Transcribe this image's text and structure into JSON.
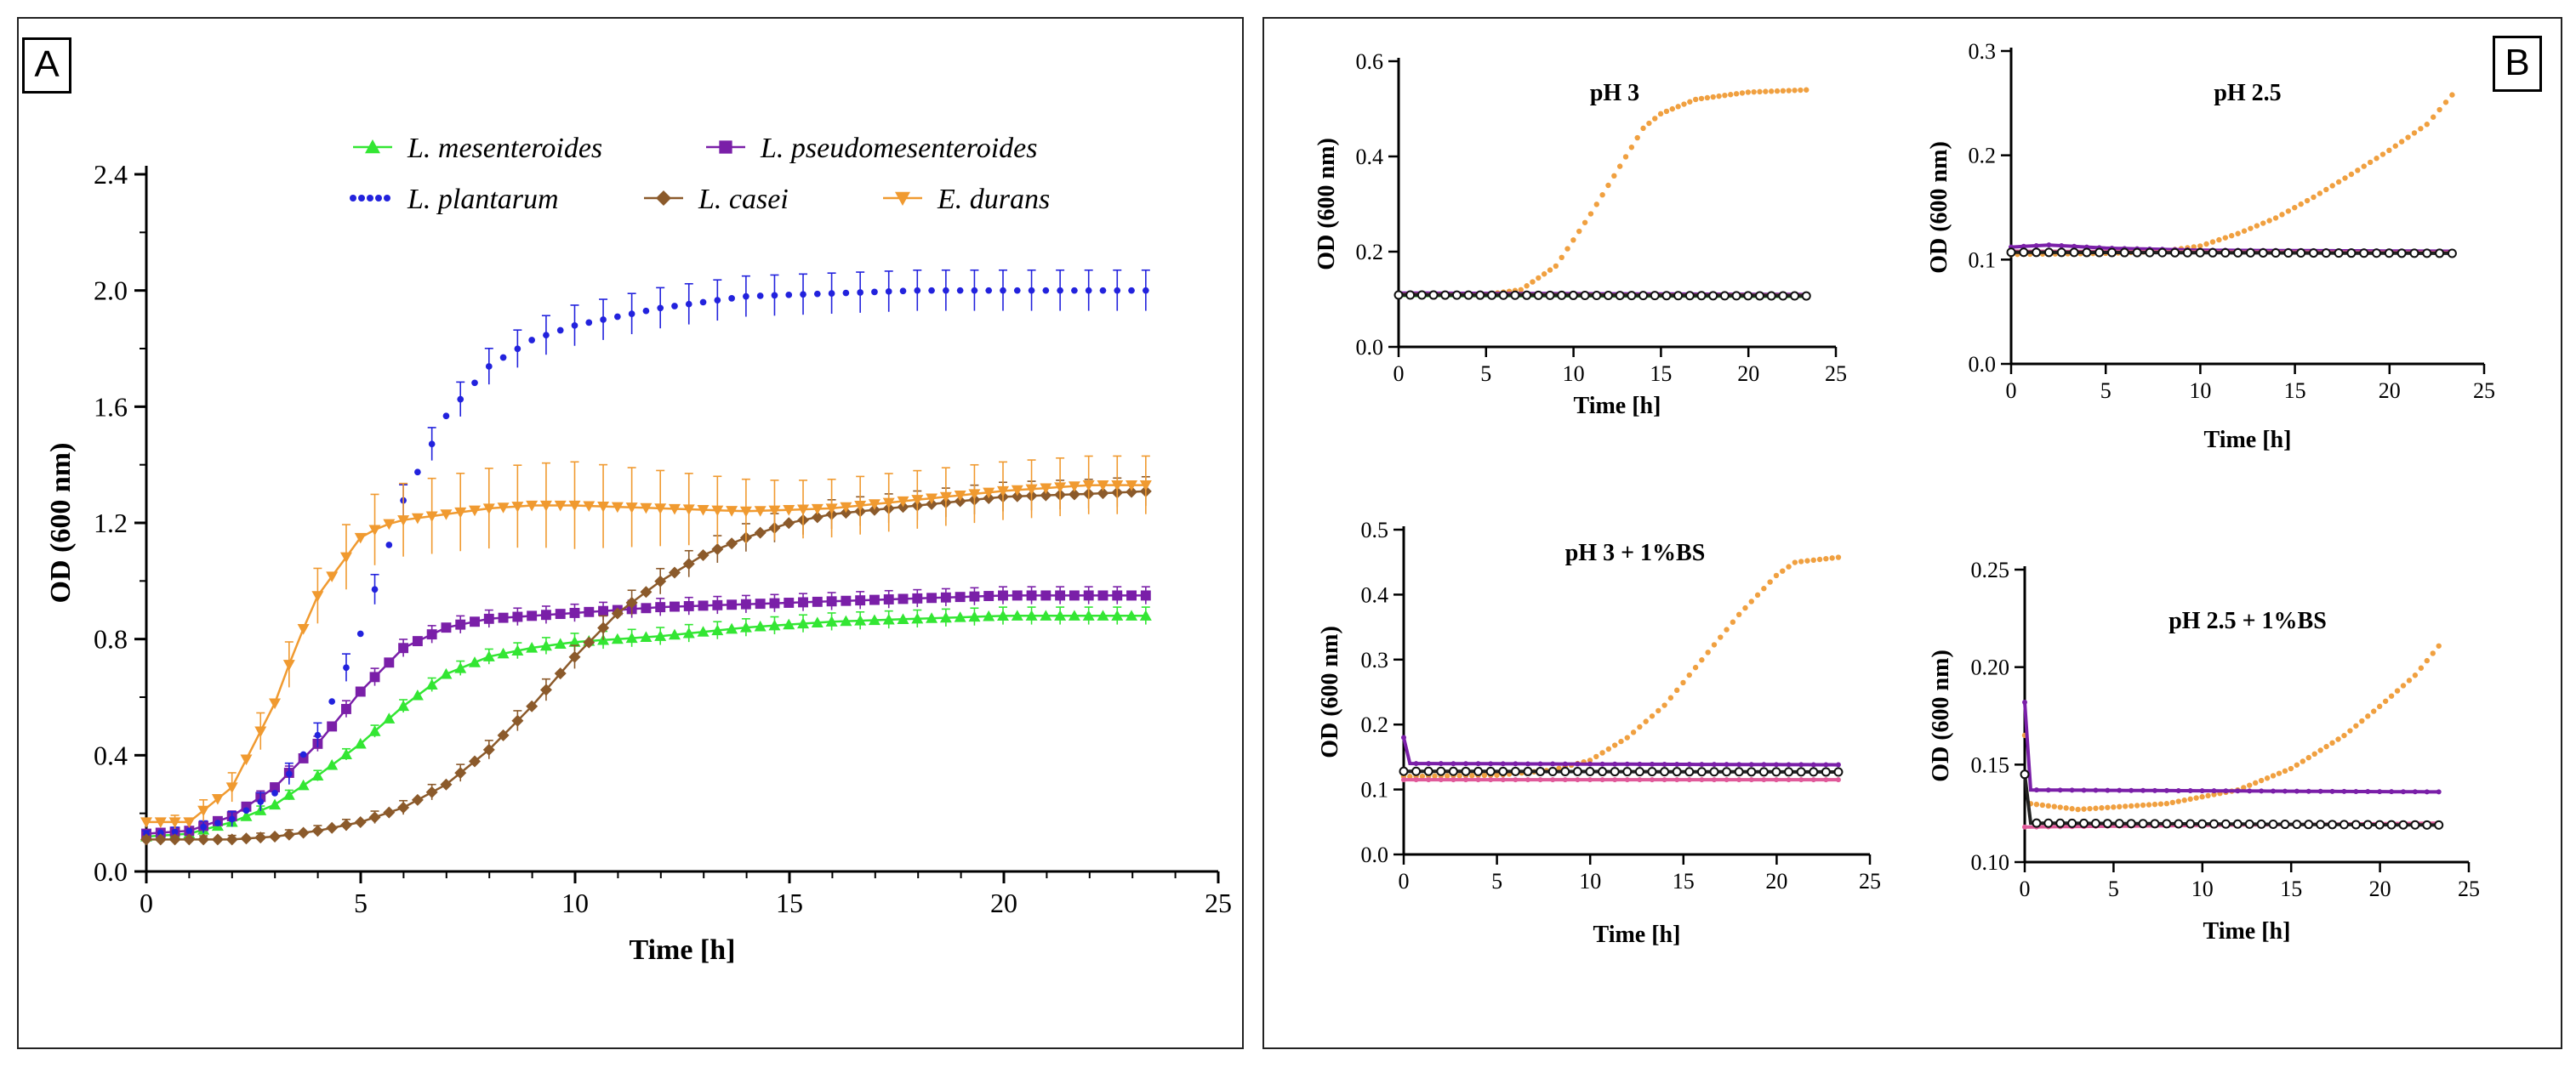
{
  "figure": {
    "panel_a_letter": "A",
    "panel_b_letter": "B"
  },
  "chart_data": [
    {
      "id": "A",
      "type": "line",
      "title": "",
      "xlabel": "Time [h]",
      "ylabel": "OD (600 nm)",
      "xlim": [
        0,
        25
      ],
      "ylim": [
        0,
        2.4
      ],
      "xticks": [
        0,
        5,
        10,
        15,
        20,
        25
      ],
      "yticks": [
        0.0,
        0.4,
        0.8,
        1.2,
        1.6,
        2.0,
        2.4
      ],
      "ytick_labels": [
        "0.0",
        "0.4",
        "0.8",
        "1.2",
        "1.6",
        "2.0",
        "2.4"
      ],
      "grid": false,
      "legend_position": "top",
      "series": [
        {
          "name": "L. mesenteroides",
          "color": "#33e633",
          "marker": "triangle",
          "points": [
            [
              0,
              0.12
            ],
            [
              1,
              0.13
            ],
            [
              2,
              0.17
            ],
            [
              3,
              0.23
            ],
            [
              4,
              0.33
            ],
            [
              5,
              0.44
            ],
            [
              6,
              0.57
            ],
            [
              7,
              0.68
            ],
            [
              8,
              0.74
            ],
            [
              9,
              0.77
            ],
            [
              10,
              0.79
            ],
            [
              12,
              0.81
            ],
            [
              14,
              0.84
            ],
            [
              16,
              0.86
            ],
            [
              18,
              0.87
            ],
            [
              20,
              0.88
            ],
            [
              22,
              0.88
            ],
            [
              23.5,
              0.88
            ]
          ],
          "errors": [
            [
              0,
              0.01
            ],
            [
              5,
              0.02
            ],
            [
              10,
              0.03
            ],
            [
              15,
              0.03
            ],
            [
              20,
              0.03
            ],
            [
              23.5,
              0.03
            ]
          ]
        },
        {
          "name": "L. pseudomesenteroides",
          "color": "#7a1fa8",
          "marker": "square",
          "points": [
            [
              0,
              0.13
            ],
            [
              1,
              0.14
            ],
            [
              2,
              0.19
            ],
            [
              3,
              0.29
            ],
            [
              4,
              0.44
            ],
            [
              5,
              0.62
            ],
            [
              6,
              0.77
            ],
            [
              7,
              0.84
            ],
            [
              8,
              0.87
            ],
            [
              9,
              0.88
            ],
            [
              10,
              0.89
            ],
            [
              12,
              0.91
            ],
            [
              14,
              0.92
            ],
            [
              16,
              0.93
            ],
            [
              18,
              0.94
            ],
            [
              20,
              0.95
            ],
            [
              22,
              0.95
            ],
            [
              23.5,
              0.95
            ]
          ],
          "errors": [
            [
              0,
              0.01
            ],
            [
              5,
              0.03
            ],
            [
              10,
              0.03
            ],
            [
              15,
              0.03
            ],
            [
              20,
              0.03
            ],
            [
              23.5,
              0.03
            ]
          ]
        },
        {
          "name": "L. plantarum",
          "color": "#2222dd",
          "marker": "dot",
          "points": [
            [
              0,
              0.13
            ],
            [
              1,
              0.14
            ],
            [
              2,
              0.18
            ],
            [
              3,
              0.27
            ],
            [
              4,
              0.47
            ],
            [
              5,
              0.82
            ],
            [
              5.5,
              1.05
            ],
            [
              6,
              1.28
            ],
            [
              7,
              1.57
            ],
            [
              8,
              1.74
            ],
            [
              9,
              1.83
            ],
            [
              10,
              1.88
            ],
            [
              11,
              1.91
            ],
            [
              12,
              1.94
            ],
            [
              14,
              1.98
            ],
            [
              16,
              1.99
            ],
            [
              18,
              2.0
            ],
            [
              20,
              2.0
            ],
            [
              22,
              2.0
            ],
            [
              23.5,
              2.0
            ]
          ],
          "errors": [
            [
              0,
              0.01
            ],
            [
              5,
              0.05
            ],
            [
              10,
              0.07
            ],
            [
              15,
              0.07
            ],
            [
              20,
              0.07
            ],
            [
              23.5,
              0.07
            ]
          ]
        },
        {
          "name": "L. casei",
          "color": "#8b5a2b",
          "marker": "diamond",
          "points": [
            [
              0,
              0.11
            ],
            [
              1,
              0.11
            ],
            [
              2,
              0.11
            ],
            [
              3,
              0.12
            ],
            [
              4,
              0.14
            ],
            [
              5,
              0.17
            ],
            [
              6,
              0.22
            ],
            [
              7,
              0.3
            ],
            [
              8,
              0.42
            ],
            [
              9,
              0.57
            ],
            [
              10,
              0.74
            ],
            [
              11,
              0.89
            ],
            [
              12,
              1.0
            ],
            [
              13,
              1.09
            ],
            [
              14,
              1.15
            ],
            [
              15,
              1.2
            ],
            [
              16,
              1.23
            ],
            [
              18,
              1.26
            ],
            [
              20,
              1.29
            ],
            [
              22,
              1.3
            ],
            [
              23.5,
              1.31
            ]
          ],
          "errors": [
            [
              0,
              0.01
            ],
            [
              5,
              0.02
            ],
            [
              10,
              0.04
            ],
            [
              15,
              0.05
            ],
            [
              20,
              0.05
            ],
            [
              23.5,
              0.05
            ]
          ]
        },
        {
          "name": "E. durans",
          "color": "#f09a30",
          "marker": "triangle-down",
          "points": [
            [
              0,
              0.17
            ],
            [
              1,
              0.17
            ],
            [
              2,
              0.29
            ],
            [
              3,
              0.58
            ],
            [
              3.5,
              0.78
            ],
            [
              4,
              0.95
            ],
            [
              5,
              1.15
            ],
            [
              5.5,
              1.19
            ],
            [
              6,
              1.21
            ],
            [
              7,
              1.23
            ],
            [
              8,
              1.25
            ],
            [
              9,
              1.26
            ],
            [
              10,
              1.26
            ],
            [
              12,
              1.25
            ],
            [
              14,
              1.24
            ],
            [
              16,
              1.25
            ],
            [
              18,
              1.28
            ],
            [
              20,
              1.31
            ],
            [
              22,
              1.33
            ],
            [
              23.5,
              1.33
            ]
          ],
          "errors": [
            [
              0,
              0.01
            ],
            [
              3,
              0.07
            ],
            [
              5,
              0.12
            ],
            [
              10,
              0.15
            ],
            [
              15,
              0.1
            ],
            [
              20,
              0.1
            ],
            [
              23.5,
              0.1
            ]
          ]
        }
      ]
    },
    {
      "id": "B1",
      "type": "line",
      "title": "pH 3",
      "xlabel": "Time [h]",
      "ylabel": "OD (600 nm)",
      "xlim": [
        0,
        25
      ],
      "ylim": [
        0,
        0.6
      ],
      "xticks": [
        0,
        5,
        10,
        15,
        20,
        25
      ],
      "yticks": [
        0.0,
        0.2,
        0.4,
        0.6
      ],
      "ytick_labels": [
        "0.0",
        "0.2",
        "0.4",
        "0.6"
      ],
      "series": [
        {
          "name": "E. durans",
          "color": "#f0a040",
          "points": [
            [
              0,
              0.11
            ],
            [
              5,
              0.11
            ],
            [
              7,
              0.12
            ],
            [
              9,
              0.17
            ],
            [
              11,
              0.28
            ],
            [
              13,
              0.4
            ],
            [
              14,
              0.46
            ],
            [
              15,
              0.49
            ],
            [
              17,
              0.52
            ],
            [
              20,
              0.535
            ],
            [
              23.5,
              0.54
            ]
          ]
        },
        {
          "name": "L. pseudomesenteroides",
          "color": "#7a1fa8",
          "points": [
            [
              0,
              0.113
            ],
            [
              23.5,
              0.11
            ]
          ]
        },
        {
          "name": "L. mesenteroides",
          "color": "#33cc33",
          "points": [
            [
              0,
              0.108
            ],
            [
              23.5,
              0.106
            ]
          ]
        },
        {
          "name": "L. casei",
          "color": "#8b5a2b",
          "points": [
            [
              0,
              0.11
            ],
            [
              23.5,
              0.108
            ]
          ]
        },
        {
          "name": "L. plantarum",
          "color": "#222222",
          "points": [
            [
              0,
              0.109
            ],
            [
              23.5,
              0.107
            ]
          ]
        }
      ]
    },
    {
      "id": "B2",
      "type": "line",
      "title": "pH 2.5",
      "xlabel": "Time [h]",
      "ylabel": "OD (600 nm)",
      "xlim": [
        0,
        25
      ],
      "ylim": [
        0,
        0.3
      ],
      "xticks": [
        0,
        5,
        10,
        15,
        20,
        25
      ],
      "yticks": [
        0.0,
        0.1,
        0.2,
        0.3
      ],
      "ytick_labels": [
        "0.0",
        "0.1",
        "0.2",
        "0.3"
      ],
      "series": [
        {
          "name": "E. durans",
          "color": "#f0a040",
          "points": [
            [
              0,
              0.105
            ],
            [
              5,
              0.106
            ],
            [
              8,
              0.108
            ],
            [
              10,
              0.113
            ],
            [
              12,
              0.125
            ],
            [
              14,
              0.14
            ],
            [
              16,
              0.16
            ],
            [
              18,
              0.182
            ],
            [
              20,
              0.205
            ],
            [
              22,
              0.23
            ],
            [
              23.5,
              0.262
            ]
          ]
        },
        {
          "name": "L. pseudomesenteroides",
          "color": "#7a1fa8",
          "points": [
            [
              0,
              0.112
            ],
            [
              2,
              0.114
            ],
            [
              5,
              0.111
            ],
            [
              10,
              0.109
            ],
            [
              23.5,
              0.108
            ]
          ]
        },
        {
          "name": "L. casei",
          "color": "#d05a8a",
          "points": [
            [
              0,
              0.108
            ],
            [
              23.5,
              0.107
            ]
          ]
        },
        {
          "name": "L. plantarum",
          "color": "#222222",
          "points": [
            [
              0,
              0.107
            ],
            [
              23.5,
              0.106
            ]
          ]
        }
      ]
    },
    {
      "id": "B3",
      "type": "line",
      "title": "pH 3 + 1%BS",
      "xlabel": "Time [h]",
      "ylabel": "OD (600 nm)",
      "xlim": [
        0,
        25
      ],
      "ylim": [
        0,
        0.5
      ],
      "xticks": [
        0,
        5,
        10,
        15,
        20,
        25
      ],
      "yticks": [
        0.0,
        0.1,
        0.2,
        0.3,
        0.4,
        0.5
      ],
      "ytick_labels": [
        "0.0",
        "0.1",
        "0.2",
        "0.3",
        "0.4",
        "0.5"
      ],
      "series": [
        {
          "name": "E. durans",
          "color": "#f0a040",
          "points": [
            [
              0,
              0.12
            ],
            [
              5,
              0.122
            ],
            [
              8,
              0.13
            ],
            [
              10,
              0.145
            ],
            [
              12,
              0.18
            ],
            [
              14,
              0.23
            ],
            [
              16,
              0.3
            ],
            [
              18,
              0.37
            ],
            [
              20,
              0.43
            ],
            [
              21,
              0.45
            ],
            [
              23.5,
              0.458
            ]
          ]
        },
        {
          "name": "L. pseudomesenteroides",
          "color": "#7a1fa8",
          "points": [
            [
              0,
              0.18
            ],
            [
              0.3,
              0.14
            ],
            [
              23.5,
              0.138
            ]
          ]
        },
        {
          "name": "L. mesenteroides",
          "color": "#e05a9a",
          "points": [
            [
              0,
              0.115
            ],
            [
              23.5,
              0.115
            ]
          ]
        },
        {
          "name": "L. plantarum",
          "color": "#222222",
          "points": [
            [
              0,
              0.128
            ],
            [
              23.5,
              0.127
            ]
          ]
        }
      ]
    },
    {
      "id": "B4",
      "type": "line",
      "title": "pH 2.5 + 1%BS",
      "xlabel": "Time [h]",
      "ylabel": "OD (600 nm)",
      "xlim": [
        0,
        25
      ],
      "ylim": [
        0.1,
        0.25
      ],
      "xticks": [
        0,
        5,
        10,
        15,
        20,
        25
      ],
      "yticks": [
        0.1,
        0.15,
        0.2,
        0.25
      ],
      "ytick_labels": [
        "0.10",
        "0.15",
        "0.20",
        "0.25"
      ],
      "series": [
        {
          "name": "E. durans",
          "color": "#f0a040",
          "points": [
            [
              0,
              0.165
            ],
            [
              0.3,
              0.13
            ],
            [
              3,
              0.127
            ],
            [
              8,
              0.13
            ],
            [
              12,
              0.137
            ],
            [
              15,
              0.148
            ],
            [
              18,
              0.165
            ],
            [
              20,
              0.18
            ],
            [
              22,
              0.196
            ],
            [
              23.5,
              0.213
            ]
          ]
        },
        {
          "name": "L. pseudomesenteroides",
          "color": "#7a1fa8",
          "points": [
            [
              0,
              0.182
            ],
            [
              0.3,
              0.137
            ],
            [
              23.5,
              0.136
            ]
          ]
        },
        {
          "name": "L. casei",
          "color": "#e05a9a",
          "points": [
            [
              0,
              0.118
            ],
            [
              23.5,
              0.12
            ]
          ]
        },
        {
          "name": "L. plantarum",
          "color": "#222222",
          "points": [
            [
              0,
              0.145
            ],
            [
              0.3,
              0.12
            ],
            [
              23.5,
              0.119
            ]
          ]
        }
      ]
    }
  ]
}
